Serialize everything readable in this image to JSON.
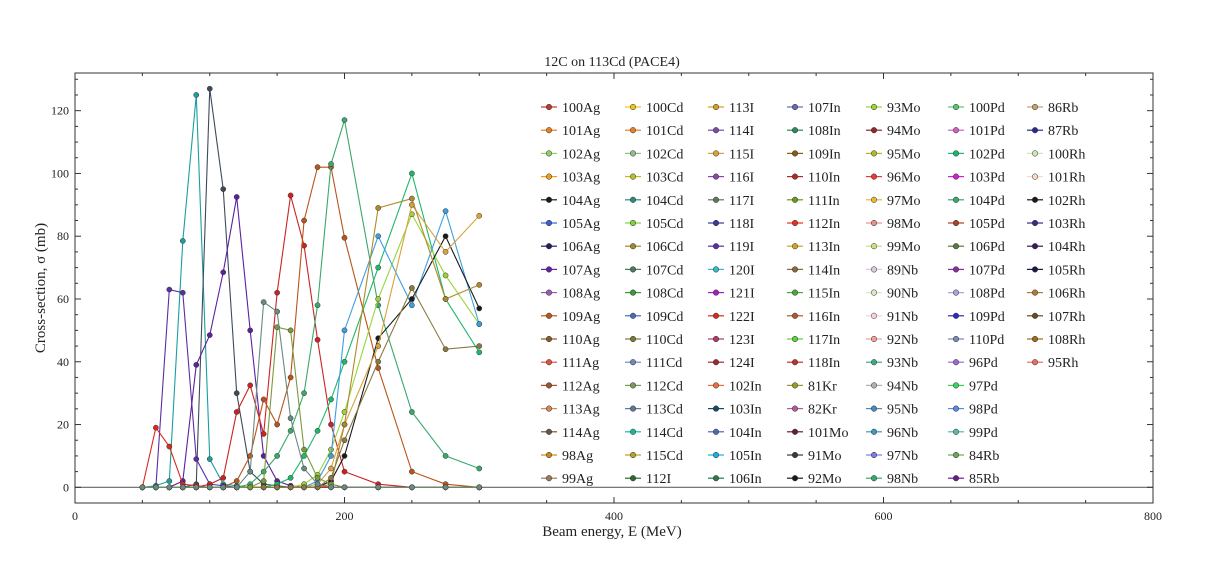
{
  "chart_data": {
    "type": "line",
    "title": "12C on 113Cd (PACE4)",
    "xlabel": "Beam energy, E (MeV)",
    "ylabel": "Cross-section, σ (mb)",
    "xlim": [
      0,
      800
    ],
    "ylim": [
      -5,
      132
    ],
    "xticks": [
      0,
      200,
      400,
      600,
      800
    ],
    "yticks": [
      0,
      20,
      40,
      60,
      80,
      100,
      120
    ],
    "grid": false,
    "legend_position": "upper-middle-right",
    "x": [
      50,
      60,
      70,
      80,
      90,
      100,
      110,
      120,
      130,
      140,
      150,
      160,
      170,
      180,
      190,
      200,
      225,
      250,
      275,
      300
    ],
    "series_order": [
      "100Ag",
      "101Ag",
      "102Ag",
      "103Ag",
      "104Ag",
      "105Ag",
      "106Ag",
      "107Ag",
      "108Ag",
      "109Ag",
      "110Ag",
      "111Ag",
      "112Ag",
      "113Ag",
      "114Ag",
      "98Ag",
      "99Ag",
      "100Cd",
      "101Cd",
      "102Cd",
      "103Cd",
      "104Cd",
      "105Cd",
      "106Cd",
      "107Cd",
      "108Cd",
      "109Cd",
      "110Cd",
      "111Cd",
      "112Cd",
      "113Cd",
      "114Cd",
      "115Cd",
      "112I",
      "113I",
      "114I",
      "115I",
      "116I",
      "117I",
      "118I",
      "119I",
      "120I",
      "121I",
      "122I",
      "123I",
      "124I",
      "102In",
      "103In",
      "104In",
      "105In",
      "106In",
      "107In",
      "108In",
      "109In",
      "110In",
      "111In",
      "112In",
      "113In",
      "114In",
      "115In",
      "116In",
      "117In",
      "118In",
      "81Kr",
      "82Kr",
      "101Mo",
      "91Mo",
      "92Mo",
      "93Mo",
      "94Mo",
      "95Mo",
      "96Mo",
      "97Mo",
      "98Mo",
      "99Mo",
      "89Nb",
      "90Nb",
      "91Nb",
      "92Nb",
      "93Nb",
      "94Nb",
      "95Nb",
      "96Nb",
      "97Nb",
      "98Nb",
      "100Pd",
      "101Pd",
      "102Pd",
      "103Pd",
      "104Pd",
      "105Pd",
      "106Pd",
      "107Pd",
      "108Pd",
      "109Pd",
      "110Pd",
      "96Pd",
      "97Pd",
      "98Pd",
      "99Pd",
      "84Rb",
      "85Rb",
      "86Rb",
      "87Rb",
      "100Rh",
      "101Rh",
      "102Rh",
      "103Rh",
      "104Rh",
      "105Rh",
      "106Rh",
      "107Rh",
      "108Rh",
      "95Rh"
    ],
    "highlighted_series": [
      {
        "name": "107Cd",
        "color": "#1b9e9e",
        "values": [
          0,
          0.5,
          2,
          78.5,
          125,
          9,
          1,
          0.5,
          0,
          0,
          0,
          0,
          0,
          0,
          0,
          0,
          0,
          0,
          0,
          0
        ]
      },
      {
        "name": "110Ag",
        "color": "#3e4a5a",
        "values": [
          0,
          0,
          0,
          0,
          1,
          127,
          95,
          30,
          5,
          1,
          0.5,
          0,
          0,
          0,
          0,
          0,
          0,
          0,
          0,
          0
        ]
      },
      {
        "name": "119I",
        "color": "#5a2ea6",
        "values": [
          0,
          0,
          63,
          62,
          9,
          1,
          0.5,
          0,
          0,
          0,
          0,
          0,
          0,
          0,
          0,
          0,
          0,
          0,
          0,
          0
        ]
      },
      {
        "name": "101Mo",
        "color": "#5c1fa0",
        "values": [
          0,
          0,
          0,
          2,
          39,
          48.5,
          68.5,
          92.5,
          50,
          10,
          2,
          0.5,
          0,
          0,
          0,
          0,
          0,
          0,
          0,
          0
        ]
      },
      {
        "name": "112In",
        "color": "#d62b1f",
        "values": [
          0,
          19,
          13,
          1,
          0.5,
          0,
          0,
          0,
          0,
          0,
          0,
          0,
          0,
          0,
          0,
          0,
          0,
          0,
          0,
          0
        ]
      },
      {
        "name": "111In",
        "color": "#cc2222",
        "values": [
          0,
          0,
          0,
          0,
          0,
          1,
          3,
          24,
          32.5,
          17,
          62,
          93,
          77,
          47,
          20,
          5,
          1,
          0,
          0,
          0
        ]
      },
      {
        "name": "109In",
        "color": "#b8541c",
        "values": [
          0,
          0,
          0,
          0,
          0,
          0,
          0,
          2,
          10,
          28,
          20,
          35,
          85,
          102,
          102,
          79.5,
          38,
          5,
          1,
          0
        ]
      },
      {
        "name": "104Pd",
        "color": "#3aa86b",
        "values": [
          0,
          0,
          0,
          0,
          0,
          0,
          0,
          0,
          1,
          5,
          10,
          18,
          30,
          58,
          103,
          117,
          58,
          24,
          10,
          6
        ]
      },
      {
        "name": "102Pd",
        "color": "#1db86b",
        "values": [
          0,
          0,
          0,
          0,
          0,
          0,
          0,
          0,
          0,
          0,
          1,
          3,
          10,
          18,
          28,
          40,
          70,
          100,
          60,
          43
        ]
      },
      {
        "name": "93Mo",
        "color": "#9ad43a",
        "values": [
          0,
          0,
          0,
          0,
          0,
          0,
          0,
          0,
          0,
          0,
          0,
          0,
          1,
          4,
          12,
          24,
          60,
          87,
          67.5,
          52
        ]
      },
      {
        "name": "105In",
        "color": "#3b9fe0",
        "values": [
          0,
          0,
          0,
          0,
          0,
          0,
          0,
          0,
          0,
          0,
          0,
          0,
          0,
          2,
          10,
          50,
          80,
          58,
          88,
          52
        ]
      },
      {
        "name": "104Ag",
        "color": "#1a1a1a",
        "values": [
          0,
          0,
          0,
          0,
          0,
          0,
          0,
          0,
          0,
          0,
          0,
          0,
          0,
          0,
          2,
          10,
          47.5,
          60,
          80,
          57
        ]
      },
      {
        "name": "115I",
        "color": "#d9a23a",
        "values": [
          0,
          0,
          0,
          0,
          0,
          0,
          0,
          0,
          0,
          0,
          0,
          0,
          0,
          1,
          6,
          20,
          45,
          90,
          75,
          86.5
        ]
      },
      {
        "name": "106Cd",
        "color": "#b08a2a",
        "values": [
          0,
          0,
          0,
          0,
          0,
          0,
          0,
          0,
          0,
          0,
          0,
          0,
          0,
          0,
          1,
          20,
          89,
          92,
          60,
          64.5
        ]
      },
      {
        "name": "104Cd",
        "color": "#8a7a40",
        "values": [
          0,
          0,
          0,
          0,
          0,
          0,
          0,
          0,
          0,
          0,
          0,
          0,
          0,
          0,
          3,
          15,
          40,
          63.5,
          44,
          45
        ]
      },
      {
        "name": "114Cd",
        "color": "#7a9a3a",
        "values": [
          0,
          0,
          0,
          0,
          0,
          0,
          0,
          0,
          0,
          2,
          51,
          50,
          12,
          3,
          1,
          0,
          0,
          0,
          0,
          0
        ]
      },
      {
        "name": "112Cd",
        "color": "#6a8a80",
        "values": [
          0,
          0,
          0,
          0,
          0,
          0,
          0,
          0,
          5,
          59,
          56,
          22,
          6,
          1,
          0,
          0,
          0,
          0,
          0,
          0
        ]
      }
    ]
  },
  "legend_colors": [
    "#c0392b",
    "#e67e22",
    "#8ecf6a",
    "#f39c12",
    "#1a1a1a",
    "#3a5ed6",
    "#2c1a60",
    "#6a1fa8",
    "#9b59b6",
    "#b7561c",
    "#8a5a2a",
    "#e74c3c",
    "#a0522d",
    "#d4865a",
    "#6b5344",
    "#c98a1a",
    "#9a7a5a",
    "#f1c40f",
    "#e67e22",
    "#8fbc8f",
    "#bcbd22",
    "#2c8a7a",
    "#7fd43a",
    "#a08a2a",
    "#4a7a5a",
    "#3a9a3a",
    "#4a6ab4",
    "#7a7a3a",
    "#6a8aba",
    "#7a9a5a",
    "#5a7a9a",
    "#1ab8a0",
    "#b8a02a",
    "#2a6a2a",
    "#d4a020",
    "#7a4aa8",
    "#d9a23a",
    "#8e44ad",
    "#5a7a5a",
    "#3a3aa0",
    "#5a2ea6",
    "#3ab8c8",
    "#a020c0",
    "#d62b1f",
    "#b03a6a",
    "#a02a2a",
    "#e8703a",
    "#1a4a6a",
    "#4a6ab4",
    "#1ab0e0",
    "#2a7a4a",
    "#6a6ab4",
    "#2a8a5a",
    "#8a5a1a",
    "#b02a2a",
    "#6a9a1a",
    "#e8301a",
    "#d4a020",
    "#8a6a3a",
    "#4aa83a",
    "#b0582a",
    "#5ad43a",
    "#c0302a",
    "#9a9a2a",
    "#b05aa0",
    "#6a1a3a",
    "#3a3a3a",
    "#1a1a1a",
    "#9ad43a",
    "#8a2a2a",
    "#b0b82a",
    "#e83a3a",
    "#e8b83a",
    "#e8908a",
    "#c8e08a",
    "#d8c8e0",
    "#d8e8c8",
    "#f8d0e0",
    "#f0a0a0",
    "#3aa88a",
    "#b0b0b0",
    "#4a8aba",
    "#3a9aba",
    "#7a7ae8",
    "#3aa86b",
    "#5ac86a",
    "#d060c0",
    "#1ab86b",
    "#d020d0",
    "#3aa86b",
    "#b0402a",
    "#5a7a3a",
    "#8a2aa0",
    "#b0a0e0",
    "#2a2ac0",
    "#7a8aba",
    "#9a6ad4",
    "#3ad45a",
    "#5a8ae0",
    "#5ab8a8",
    "#6aa85a",
    "#6a1a8a",
    "#c8a06a",
    "#2a2a8a",
    "#c8e8b8",
    "#f8d8c8",
    "#1a1a1a",
    "#3a2a8a",
    "#3a1a5a",
    "#1a1a4a",
    "#b07a3a",
    "#6a4a1a",
    "#a06a1a",
    "#e8705a"
  ]
}
